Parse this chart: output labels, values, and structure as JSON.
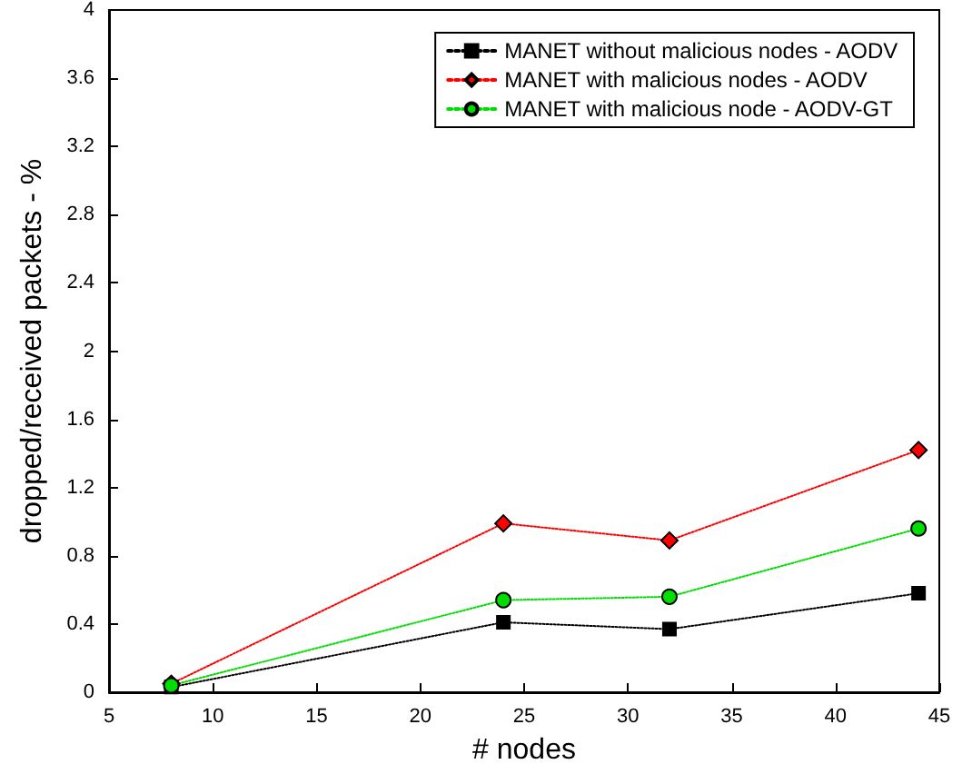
{
  "chart_data": {
    "type": "line",
    "xlabel": "# nodes",
    "ylabel": "dropped/received packets - %",
    "x": [
      8,
      24,
      32,
      44
    ],
    "series": [
      {
        "name": "MANET without malicious nodes - AODV",
        "color": "#000000",
        "marker": "square",
        "values": [
          0.03,
          0.41,
          0.37,
          0.58
        ]
      },
      {
        "name": "MANET with malicious nodes - AODV",
        "color": "#ff0000",
        "marker": "diamond",
        "values": [
          0.05,
          0.99,
          0.89,
          1.42
        ]
      },
      {
        "name": "MANET with malicious node - AODV-GT",
        "color": "#00dd00",
        "marker": "circle",
        "values": [
          0.04,
          0.54,
          0.56,
          0.96
        ]
      }
    ],
    "xlim": [
      5,
      45
    ],
    "xticks": [
      5,
      10,
      15,
      20,
      25,
      30,
      35,
      40,
      45
    ],
    "ylim": [
      0,
      4
    ],
    "yticks": [
      0,
      0.4,
      0.8,
      1.2,
      1.6,
      2,
      2.4,
      2.8,
      3.2,
      3.6,
      4
    ],
    "grid": false,
    "legend": "top right",
    "line_style": "dotted"
  }
}
